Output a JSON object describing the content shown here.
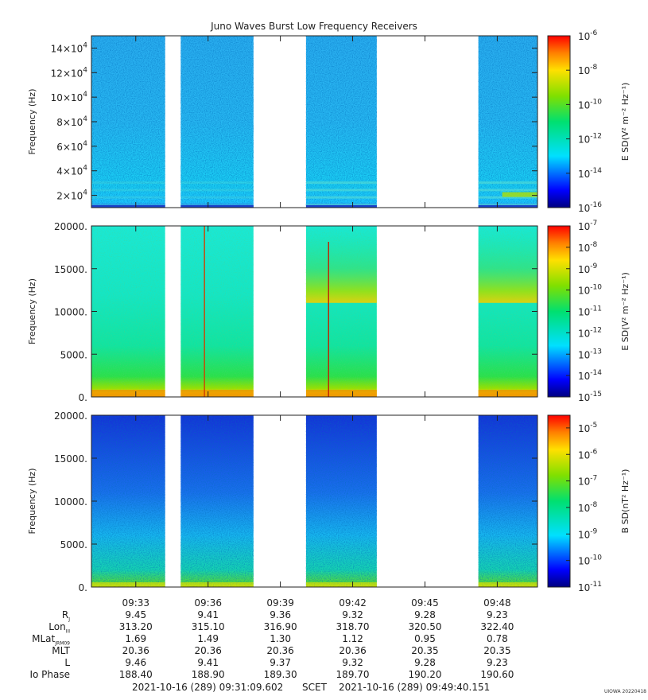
{
  "title": "Juno Waves Burst Low Frequency Receivers",
  "time_axis": {
    "start": "09:31:09.602",
    "end": "09:49:40.151",
    "ticks": [
      "09:33",
      "09:36",
      "09:39",
      "09:42",
      "09:45",
      "09:48"
    ]
  },
  "chart_data": [
    {
      "type": "heatmap",
      "name": "panel-1",
      "ylabel": "Frequency (Hz)",
      "yticks": [
        {
          "mant": "2",
          "exp": "4",
          "value": 20000
        },
        {
          "mant": "4",
          "exp": "4",
          "value": 40000
        },
        {
          "mant": "6",
          "exp": "4",
          "value": 60000
        },
        {
          "mant": "8",
          "exp": "4",
          "value": 80000
        },
        {
          "mant": "10",
          "exp": "4",
          "value": 100000
        },
        {
          "mant": "12",
          "exp": "4",
          "value": 120000
        },
        {
          "mant": "14",
          "exp": "4",
          "value": 140000
        }
      ],
      "ylim": [
        10000,
        150000
      ],
      "colorbar": {
        "label": "E SD(V² m⁻² Hz⁻¹)",
        "scale": "log",
        "range": [
          1e-16,
          1e-06
        ],
        "ticks": [
          "-16",
          "-14",
          "-12",
          "-10",
          "-8",
          "-6"
        ]
      },
      "data_segments": [
        [
          "09:31:09",
          "09:34:13"
        ],
        [
          "09:34:52",
          "09:37:53"
        ],
        [
          "09:40:04",
          "09:43:00"
        ],
        [
          "09:47:13",
          "09:49:40"
        ]
      ]
    },
    {
      "type": "heatmap",
      "name": "panel-2",
      "ylabel": "Frequency (Hz)",
      "yticks": [
        {
          "label": "0.",
          "value": 0
        },
        {
          "label": "5000.",
          "value": 5000
        },
        {
          "label": "10000.",
          "value": 10000
        },
        {
          "label": "15000.",
          "value": 15000
        },
        {
          "label": "20000.",
          "value": 20000
        }
      ],
      "ylim": [
        0,
        20000
      ],
      "colorbar": {
        "label": "E SD(V² m⁻² Hz⁻¹)",
        "scale": "log",
        "range": [
          1e-15,
          1e-07
        ],
        "ticks": [
          "-15",
          "-14",
          "-13",
          "-12",
          "-11",
          "-10",
          "-9",
          "-8",
          "-7"
        ]
      },
      "data_segments": [
        [
          "09:31:09",
          "09:34:13"
        ],
        [
          "09:34:52",
          "09:37:53"
        ],
        [
          "09:40:04",
          "09:43:00"
        ],
        [
          "09:47:13",
          "09:49:40"
        ]
      ]
    },
    {
      "type": "heatmap",
      "name": "panel-3",
      "ylabel": "Frequency (Hz)",
      "yticks": [
        {
          "label": "0.",
          "value": 0
        },
        {
          "label": "5000.",
          "value": 5000
        },
        {
          "label": "10000.",
          "value": 10000
        },
        {
          "label": "15000.",
          "value": 15000
        },
        {
          "label": "20000.",
          "value": 20000
        }
      ],
      "ylim": [
        0,
        20000
      ],
      "colorbar": {
        "label": "B SD(nT² Hz⁻¹)",
        "scale": "log",
        "range": [
          1e-11,
          3e-05
        ],
        "ticks": [
          "-11",
          "-10",
          "-9",
          "-8",
          "-7",
          "-6",
          "-5"
        ]
      },
      "data_segments": [
        [
          "09:31:09",
          "09:34:13"
        ],
        [
          "09:34:52",
          "09:37:53"
        ],
        [
          "09:40:04",
          "09:43:00"
        ],
        [
          "09:47:13",
          "09:49:40"
        ]
      ]
    }
  ],
  "ephemeris": {
    "rows": [
      {
        "label": "R",
        "sub": "J",
        "values": [
          "9.45",
          "9.41",
          "9.36",
          "9.32",
          "9.28",
          "9.23"
        ]
      },
      {
        "label": "Lon",
        "sub": "III",
        "values": [
          "313.20",
          "315.10",
          "316.90",
          "318.70",
          "320.50",
          "322.40"
        ]
      },
      {
        "label": "MLat",
        "sub": "JRM09",
        "values": [
          "1.69",
          "1.49",
          "1.30",
          "1.12",
          "0.95",
          "0.78"
        ]
      },
      {
        "label": "MLT",
        "sub": "",
        "values": [
          "20.36",
          "20.36",
          "20.36",
          "20.36",
          "20.35",
          "20.35"
        ]
      },
      {
        "label": "L",
        "sub": "",
        "values": [
          "9.46",
          "9.41",
          "9.37",
          "9.32",
          "9.28",
          "9.23"
        ]
      },
      {
        "label": "Io Phase",
        "sub": "",
        "values": [
          "188.40",
          "188.90",
          "189.30",
          "189.70",
          "190.20",
          "190.60"
        ]
      }
    ]
  },
  "footer": {
    "start": "2021-10-16 (289) 09:31:09.602",
    "frame": "SCET",
    "end": "2021-10-16 (289) 09:49:40.151"
  },
  "tag": "UIOWA 20220418"
}
